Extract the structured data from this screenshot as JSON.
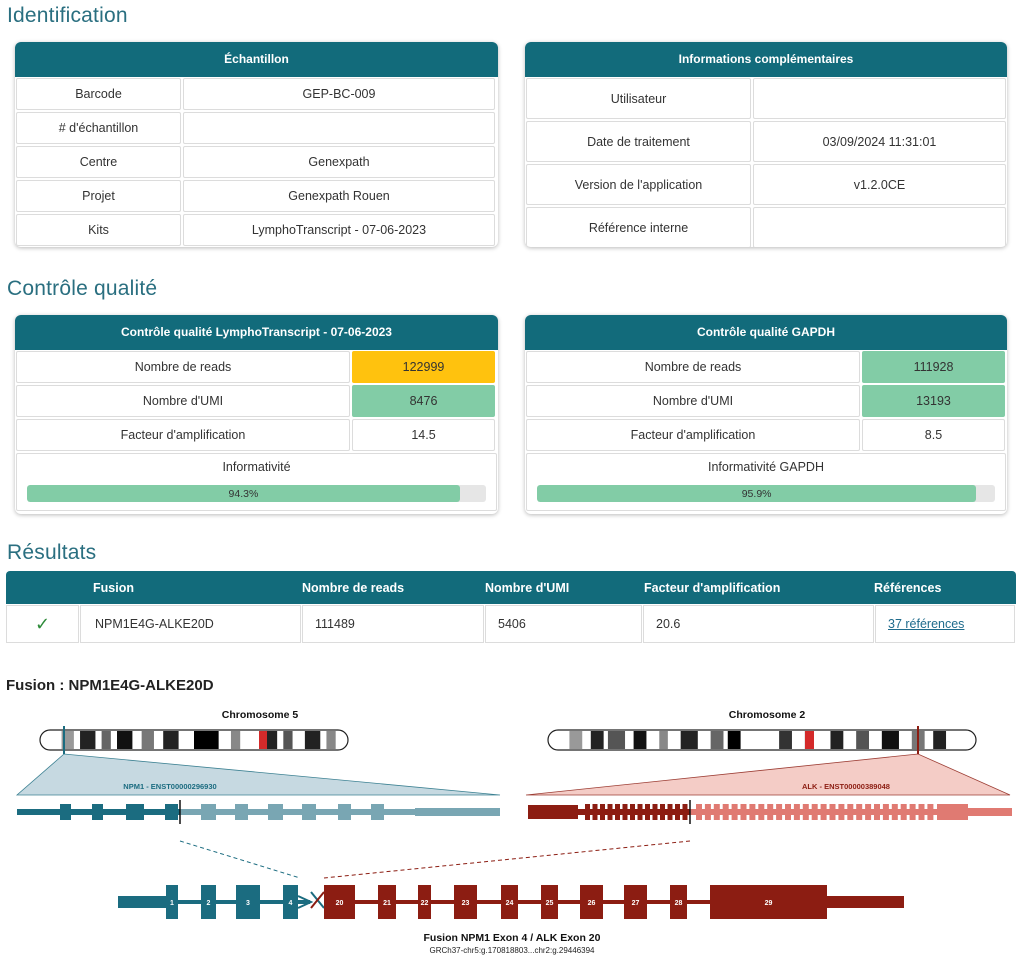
{
  "sections": {
    "identification": "Identification",
    "qc": "Contrôle qualité",
    "results": "Résultats"
  },
  "sample": {
    "header": "Échantillon",
    "rows": [
      {
        "label": "Barcode",
        "value": "GEP-BC-009"
      },
      {
        "label": "# d'échantillon",
        "value": ""
      },
      {
        "label": "Centre",
        "value": "Genexpath"
      },
      {
        "label": "Projet",
        "value": "Genexpath Rouen"
      },
      {
        "label": "Kits",
        "value": "LymphoTranscript - 07-06-2023"
      }
    ]
  },
  "info": {
    "header": "Informations complémentaires",
    "rows": [
      {
        "label": "Utilisateur",
        "value": ""
      },
      {
        "label": "Date de traitement",
        "value": "03/09/2024 11:31:01"
      },
      {
        "label": "Version de l'application",
        "value": "v1.2.0CE"
      },
      {
        "label": "Référence interne",
        "value": ""
      }
    ]
  },
  "qc_kit": {
    "header": "Contrôle qualité LymphoTranscript - 07-06-2023",
    "rows": [
      {
        "label": "Nombre de reads",
        "value": "122999",
        "status": "warning"
      },
      {
        "label": "Nombre d'UMI",
        "value": "8476",
        "status": "ok"
      },
      {
        "label": "Facteur d'amplification",
        "value": "14.5",
        "status": "none"
      }
    ],
    "informativity_label": "Informativité",
    "informativity_value": "94.3%",
    "informativity_fraction": 0.943
  },
  "qc_gapdh": {
    "header": "Contrôle qualité GAPDH",
    "rows": [
      {
        "label": "Nombre de reads",
        "value": "111928",
        "status": "ok"
      },
      {
        "label": "Nombre d'UMI",
        "value": "13193",
        "status": "ok"
      },
      {
        "label": "Facteur d'amplification",
        "value": "8.5",
        "status": "none"
      }
    ],
    "informativity_label": "Informativité GAPDH",
    "informativity_value": "95.9%",
    "informativity_fraction": 0.959
  },
  "results": {
    "columns": [
      "Fusion",
      "Nombre de reads",
      "Nombre d'UMI",
      "Facteur d'amplification",
      "Références"
    ],
    "rows": [
      {
        "check": "✓",
        "fusion": "NPM1E4G-ALKE20D",
        "reads": "111489",
        "umi": "5406",
        "factor": "20.6",
        "refs": "37 références"
      }
    ]
  },
  "fusion_view": {
    "title": "Fusion : NPM1E4G-ALKE20D",
    "chr5_label": "Chromosome 5",
    "chr2_label": "Chromosome 2",
    "npm1_transcript": "NPM1 - ENST00000296930",
    "alk_transcript": "ALK - ENST00000389048",
    "fusion_caption": "Fusion NPM1 Exon 4 / ALK Exon 20",
    "fusion_coords": "GRCh37-chr5:g.170818803...chr2:g.29446394",
    "npm1_exons_fused": [
      "1",
      "2",
      "3",
      "4"
    ],
    "alk_exons_fused": [
      "20",
      "21",
      "22",
      "23",
      "24",
      "25",
      "26",
      "27",
      "28",
      "29"
    ]
  },
  "colors": {
    "header": "#126b7b",
    "ok": "#82cca6",
    "warning": "#ffc20e",
    "npm1": "#1b6c80",
    "alk": "#8c1d12",
    "title": "#2a6f80"
  }
}
